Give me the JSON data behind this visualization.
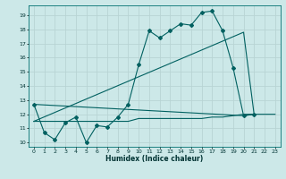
{
  "xlabel": "Humidex (Indice chaleur)",
  "bg_color": "#cce8e8",
  "grid_color": "#b8d4d4",
  "line_color": "#006060",
  "xlim": [
    -0.5,
    23.5
  ],
  "ylim": [
    9.7,
    19.7
  ],
  "yticks": [
    10,
    11,
    12,
    13,
    14,
    15,
    16,
    17,
    18,
    19
  ],
  "xticks": [
    0,
    1,
    2,
    3,
    4,
    5,
    6,
    7,
    8,
    9,
    10,
    11,
    12,
    13,
    14,
    15,
    16,
    17,
    18,
    19,
    20,
    21,
    22,
    23
  ],
  "line1_x": [
    0,
    1,
    2,
    3,
    4,
    5,
    6,
    7,
    8,
    9,
    10,
    11,
    12,
    13,
    14,
    15,
    16,
    17,
    18,
    19,
    20,
    21
  ],
  "line1_y": [
    12.7,
    10.7,
    10.2,
    11.4,
    11.8,
    10.0,
    11.2,
    11.1,
    11.8,
    12.7,
    15.5,
    17.9,
    17.4,
    17.9,
    18.4,
    18.3,
    19.2,
    19.3,
    17.9,
    15.3,
    11.9,
    12.0
  ],
  "line2_x": [
    0,
    1,
    2,
    3,
    4,
    5,
    6,
    7,
    8,
    9,
    10,
    11,
    12,
    13,
    14,
    15,
    16,
    17,
    18,
    19,
    20,
    21,
    22,
    23
  ],
  "line2_y": [
    11.5,
    11.5,
    11.5,
    11.5,
    11.5,
    11.5,
    11.5,
    11.5,
    11.5,
    11.5,
    11.7,
    11.7,
    11.7,
    11.7,
    11.7,
    11.7,
    11.7,
    11.8,
    11.8,
    11.9,
    12.0,
    12.0,
    12.0,
    12.0
  ],
  "line3_x": [
    0,
    20,
    21
  ],
  "line3_y": [
    11.5,
    17.8,
    12.0
  ],
  "line4_x": [
    0,
    20,
    21
  ],
  "line4_y": [
    12.7,
    11.9,
    12.0
  ]
}
